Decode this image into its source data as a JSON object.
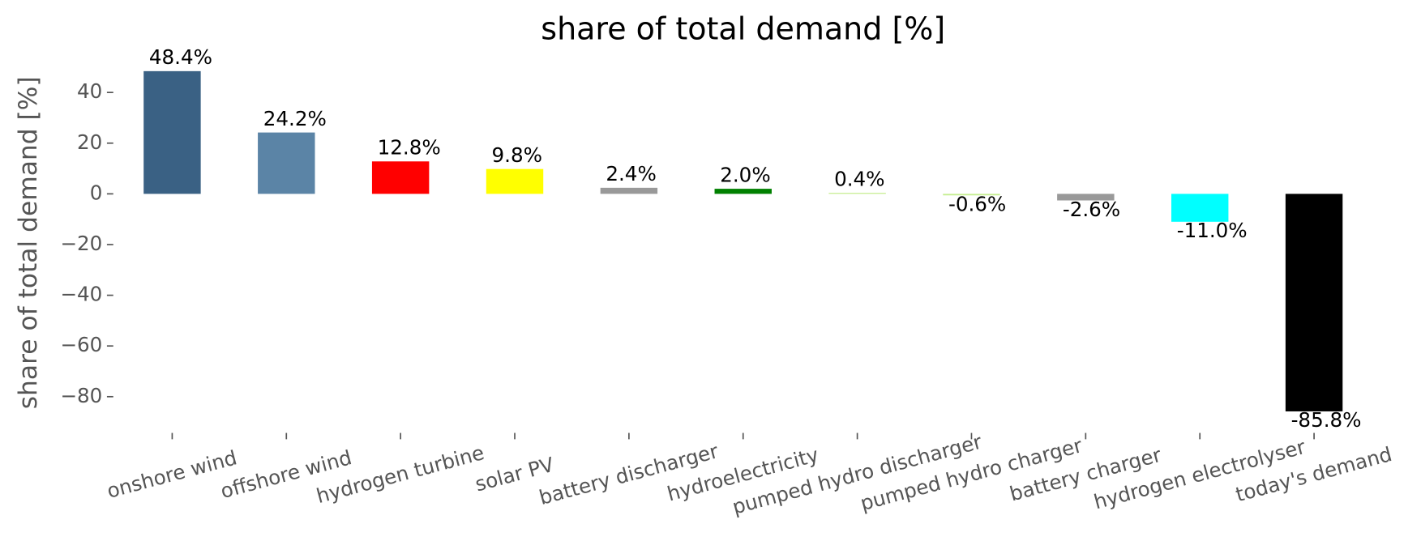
{
  "chart_data": {
    "type": "bar",
    "title": "share of total demand [%]",
    "y_label": "share of total demand [%]",
    "categories": [
      "onshore wind",
      "offshore wind",
      "hydrogen turbine",
      "solar PV",
      "battery discharger",
      "hydroelectricity",
      "pumped hydro discharger",
      "pumped hydro charger",
      "battery charger",
      "hydrogen electrolyser",
      "today's demand"
    ],
    "values": [
      48.4,
      24.2,
      12.8,
      9.8,
      2.4,
      2.0,
      0.4,
      -0.6,
      -2.6,
      -11.0,
      -85.8
    ],
    "value_labels": [
      "48.4%",
      "24.2%",
      "12.8%",
      "9.8%",
      "2.4%",
      "2.0%",
      "0.4%",
      "-0.6%",
      "-2.6%",
      "-11.0%",
      "-85.8%"
    ],
    "colors": [
      "#3a6184",
      "#5b84a6",
      "#ff0000",
      "#ffff00",
      "#999999",
      "#008000",
      "#c5ee8f",
      "#c5ee8f",
      "#999999",
      "#00ffff",
      "#000000"
    ],
    "ylim": [
      -94.3,
      53.2
    ],
    "yticks": [
      {
        "value": 40,
        "label": "40"
      },
      {
        "value": 20,
        "label": "20"
      },
      {
        "value": 0,
        "label": "0"
      },
      {
        "value": -20,
        "label": "−20"
      },
      {
        "value": -40,
        "label": "−40"
      },
      {
        "value": -60,
        "label": "−60"
      },
      {
        "value": -80,
        "label": "−80"
      }
    ],
    "grid": false
  }
}
